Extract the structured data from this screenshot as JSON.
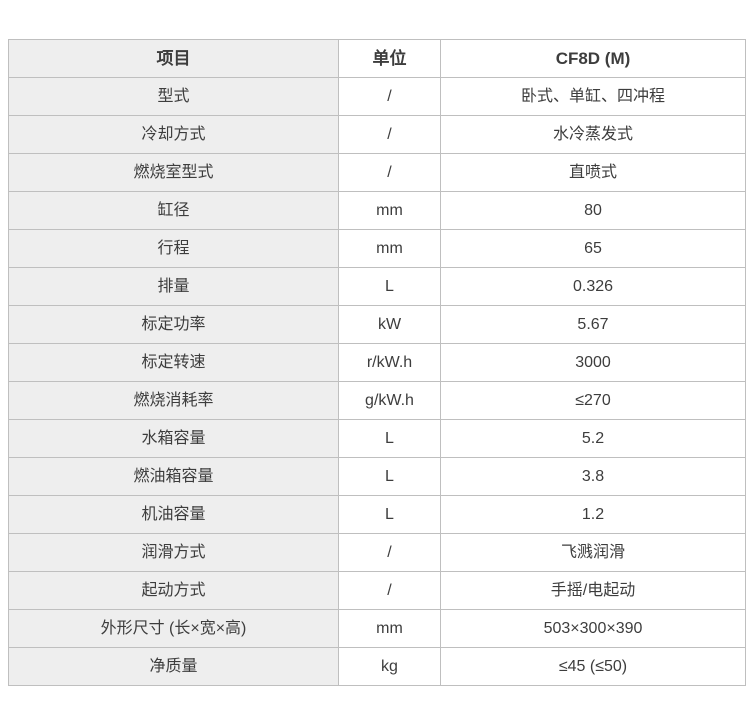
{
  "spec_table": {
    "headers": {
      "item": "项目",
      "unit": "单位",
      "model": "CF8D (M)"
    },
    "rows": [
      {
        "item": "型式",
        "unit": "/",
        "value": "卧式、单缸、四冲程"
      },
      {
        "item": "冷却方式",
        "unit": "/",
        "value": "水冷蒸发式"
      },
      {
        "item": "燃烧室型式",
        "unit": "/",
        "value": "直喷式"
      },
      {
        "item": "缸径",
        "unit": "mm",
        "value": "80"
      },
      {
        "item": "行程",
        "unit": "mm",
        "value": "65"
      },
      {
        "item": "排量",
        "unit": "L",
        "value": "0.326"
      },
      {
        "item": "标定功率",
        "unit": "kW",
        "value": "5.67"
      },
      {
        "item": "标定转速",
        "unit": "r/kW.h",
        "value": "3000"
      },
      {
        "item": "燃烧消耗率",
        "unit": "g/kW.h",
        "value": "≤270"
      },
      {
        "item": "水箱容量",
        "unit": "L",
        "value": "5.2"
      },
      {
        "item": "燃油箱容量",
        "unit": "L",
        "value": "3.8"
      },
      {
        "item": "机油容量",
        "unit": "L",
        "value": "1.2"
      },
      {
        "item": "润滑方式",
        "unit": "/",
        "value": "飞溅润滑"
      },
      {
        "item": "起动方式",
        "unit": "/",
        "value": "手摇/电起动"
      },
      {
        "item": "外形尺寸 (长×宽×高)",
        "unit": "mm",
        "value": "503×300×390"
      },
      {
        "item": "净质量",
        "unit": "kg",
        "value": "≤45 (≤50)"
      }
    ],
    "colors": {
      "label_column_bg": "#eeeeee",
      "border": "#bfbfbf",
      "text": "#3d3d3d",
      "cell_bg": "#ffffff"
    }
  }
}
